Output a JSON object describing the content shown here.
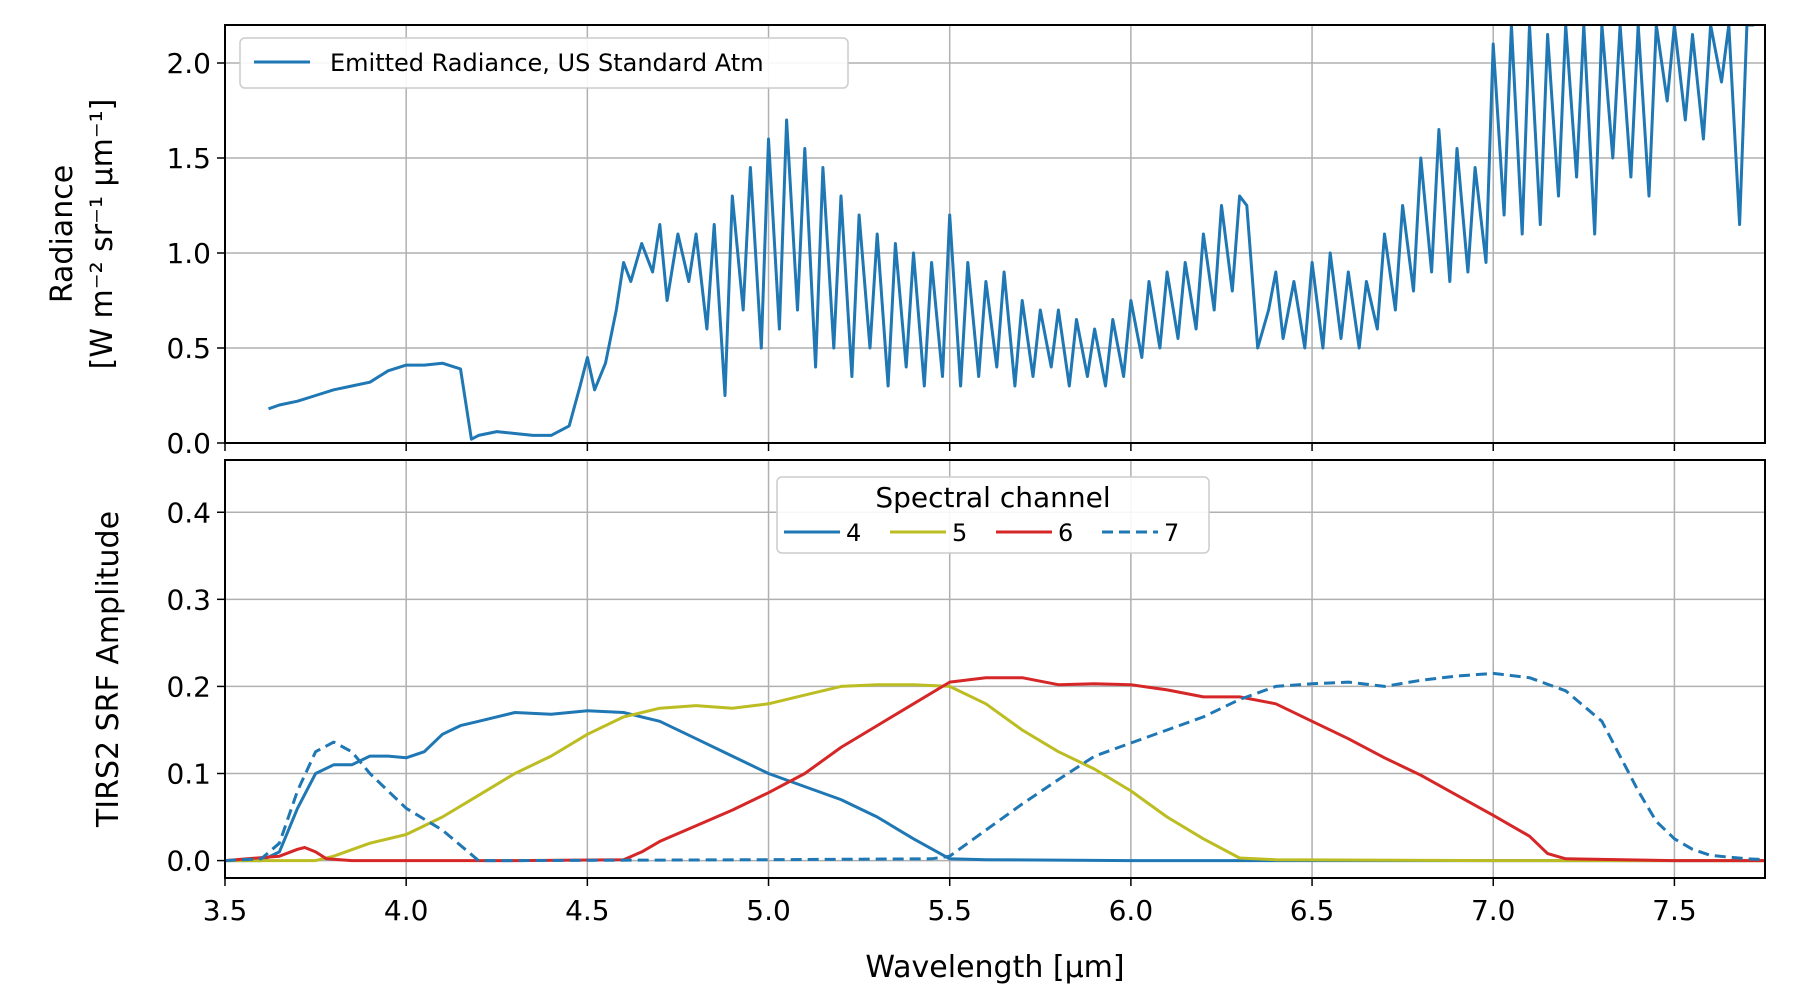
{
  "chart_data": [
    {
      "type": "line",
      "xlabel": "",
      "ylabel_line1": "Radiance",
      "ylabel_line2": "[W m⁻² sr⁻¹ μm⁻¹]",
      "xlim": [
        3.5,
        7.75
      ],
      "ylim": [
        0.0,
        2.2
      ],
      "yticks": [
        "0.0",
        "0.5",
        "1.0",
        "1.5",
        "2.0"
      ],
      "yticks_values": [
        0.0,
        0.5,
        1.0,
        1.5,
        2.0
      ],
      "grid": true,
      "legend_position": "upper-left",
      "series": [
        {
          "name": "Emitted Radiance, US Standard Atm",
          "color": "#1f77b4",
          "x": [
            3.62,
            3.65,
            3.7,
            3.75,
            3.8,
            3.85,
            3.9,
            3.95,
            4.0,
            4.05,
            4.1,
            4.15,
            4.18,
            4.2,
            4.25,
            4.3,
            4.35,
            4.4,
            4.45,
            4.48,
            4.5,
            4.52,
            4.55,
            4.58,
            4.6,
            4.62,
            4.65,
            4.68,
            4.7,
            4.72,
            4.75,
            4.78,
            4.8,
            4.83,
            4.85,
            4.88,
            4.9,
            4.93,
            4.95,
            4.98,
            5.0,
            5.03,
            5.05,
            5.08,
            5.1,
            5.13,
            5.15,
            5.18,
            5.2,
            5.23,
            5.25,
            5.28,
            5.3,
            5.33,
            5.35,
            5.38,
            5.4,
            5.43,
            5.45,
            5.48,
            5.5,
            5.53,
            5.55,
            5.58,
            5.6,
            5.63,
            5.65,
            5.68,
            5.7,
            5.73,
            5.75,
            5.78,
            5.8,
            5.83,
            5.85,
            5.88,
            5.9,
            5.93,
            5.95,
            5.98,
            6.0,
            6.03,
            6.05,
            6.08,
            6.1,
            6.13,
            6.15,
            6.18,
            6.2,
            6.23,
            6.25,
            6.28,
            6.3,
            6.32,
            6.35,
            6.38,
            6.4,
            6.42,
            6.45,
            6.48,
            6.5,
            6.53,
            6.55,
            6.58,
            6.6,
            6.63,
            6.65,
            6.68,
            6.7,
            6.73,
            6.75,
            6.78,
            6.8,
            6.83,
            6.85,
            6.88,
            6.9,
            6.93,
            6.95,
            6.98,
            7.0,
            7.03,
            7.05,
            7.08,
            7.1,
            7.13,
            7.15,
            7.18,
            7.2,
            7.23,
            7.25,
            7.28,
            7.3,
            7.33,
            7.35,
            7.38,
            7.4,
            7.43,
            7.45,
            7.48,
            7.5,
            7.53,
            7.55,
            7.58,
            7.6,
            7.63,
            7.65,
            7.68,
            7.7,
            7.72
          ],
          "y": [
            0.18,
            0.2,
            0.22,
            0.25,
            0.28,
            0.3,
            0.32,
            0.38,
            0.41,
            0.41,
            0.42,
            0.39,
            0.02,
            0.04,
            0.06,
            0.05,
            0.04,
            0.04,
            0.09,
            0.3,
            0.45,
            0.28,
            0.42,
            0.7,
            0.95,
            0.85,
            1.05,
            0.9,
            1.15,
            0.75,
            1.1,
            0.85,
            1.1,
            0.6,
            1.15,
            0.25,
            1.3,
            0.7,
            1.45,
            0.5,
            1.6,
            0.6,
            1.7,
            0.7,
            1.55,
            0.4,
            1.45,
            0.5,
            1.3,
            0.35,
            1.2,
            0.5,
            1.1,
            0.3,
            1.05,
            0.4,
            1.0,
            0.3,
            0.95,
            0.35,
            1.2,
            0.3,
            0.95,
            0.35,
            0.85,
            0.4,
            0.9,
            0.3,
            0.75,
            0.35,
            0.7,
            0.4,
            0.7,
            0.3,
            0.65,
            0.35,
            0.6,
            0.3,
            0.65,
            0.35,
            0.75,
            0.45,
            0.85,
            0.5,
            0.9,
            0.55,
            0.95,
            0.6,
            1.1,
            0.7,
            1.25,
            0.8,
            1.3,
            1.25,
            0.5,
            0.7,
            0.9,
            0.55,
            0.85,
            0.5,
            0.95,
            0.5,
            1.0,
            0.55,
            0.9,
            0.5,
            0.85,
            0.6,
            1.1,
            0.7,
            1.25,
            0.8,
            1.5,
            0.9,
            1.65,
            0.85,
            1.55,
            0.9,
            1.45,
            0.95,
            2.1,
            1.2,
            2.2,
            1.1,
            2.2,
            1.15,
            2.15,
            1.3,
            2.2,
            1.4,
            2.2,
            1.1,
            2.2,
            1.5,
            2.2,
            1.4,
            2.2,
            1.3,
            2.2,
            1.8,
            2.2,
            1.7,
            2.15,
            1.6,
            2.2,
            1.9,
            2.2,
            1.15,
            2.2,
            2.2
          ]
        }
      ]
    },
    {
      "type": "line",
      "xlabel": "Wavelength [μm]",
      "ylabel": "TIRS2 SRF Amplitude",
      "xlim": [
        3.5,
        7.75
      ],
      "ylim": [
        -0.02,
        0.46
      ],
      "xticks": [
        "3.5",
        "4.0",
        "4.5",
        "5.0",
        "5.5",
        "6.0",
        "6.5",
        "7.0",
        "7.5"
      ],
      "xticks_values": [
        3.5,
        4.0,
        4.5,
        5.0,
        5.5,
        6.0,
        6.5,
        7.0,
        7.5
      ],
      "yticks": [
        "0.0",
        "0.1",
        "0.2",
        "0.3",
        "0.4"
      ],
      "yticks_values": [
        0.0,
        0.1,
        0.2,
        0.3,
        0.4
      ],
      "grid": true,
      "legend_position": "top-center",
      "legend_title": "Spectral channel",
      "series": [
        {
          "name": "4",
          "color": "#1f77b4",
          "dash": false,
          "x": [
            3.5,
            3.6,
            3.65,
            3.7,
            3.75,
            3.8,
            3.85,
            3.9,
            3.95,
            4.0,
            4.05,
            4.1,
            4.15,
            4.2,
            4.3,
            4.4,
            4.5,
            4.6,
            4.7,
            4.8,
            4.9,
            5.0,
            5.1,
            5.2,
            5.3,
            5.4,
            5.5,
            5.6,
            6.0,
            6.5,
            7.0,
            7.5,
            7.75
          ],
          "y": [
            0.0,
            0.0,
            0.01,
            0.06,
            0.1,
            0.11,
            0.11,
            0.12,
            0.12,
            0.118,
            0.125,
            0.145,
            0.155,
            0.16,
            0.17,
            0.168,
            0.172,
            0.17,
            0.16,
            0.14,
            0.12,
            0.1,
            0.085,
            0.07,
            0.05,
            0.025,
            0.002,
            0.001,
            0.0,
            0.0,
            0.0,
            0.0,
            0.0
          ]
        },
        {
          "name": "5",
          "color": "#bcbd22",
          "dash": false,
          "x": [
            3.5,
            3.75,
            3.8,
            3.9,
            4.0,
            4.1,
            4.2,
            4.3,
            4.4,
            4.5,
            4.6,
            4.7,
            4.8,
            4.9,
            5.0,
            5.1,
            5.2,
            5.3,
            5.4,
            5.5,
            5.6,
            5.7,
            5.8,
            5.9,
            6.0,
            6.1,
            6.2,
            6.3,
            6.4,
            7.0,
            7.75
          ],
          "y": [
            0.0,
            0.0,
            0.005,
            0.02,
            0.03,
            0.05,
            0.075,
            0.1,
            0.12,
            0.145,
            0.165,
            0.175,
            0.178,
            0.175,
            0.18,
            0.19,
            0.2,
            0.202,
            0.202,
            0.2,
            0.18,
            0.15,
            0.125,
            0.105,
            0.08,
            0.05,
            0.025,
            0.003,
            0.001,
            0.0,
            0.0
          ]
        },
        {
          "name": "6",
          "color": "#d62728",
          "dash": false,
          "x": [
            3.5,
            3.65,
            3.7,
            3.72,
            3.75,
            3.78,
            3.85,
            4.0,
            4.3,
            4.6,
            4.65,
            4.7,
            4.8,
            4.9,
            5.0,
            5.1,
            5.2,
            5.3,
            5.4,
            5.5,
            5.6,
            5.7,
            5.8,
            5.9,
            6.0,
            6.1,
            6.2,
            6.3,
            6.4,
            6.5,
            6.6,
            6.7,
            6.8,
            6.9,
            7.0,
            7.1,
            7.15,
            7.2,
            7.5,
            7.75
          ],
          "y": [
            0.0,
            0.005,
            0.013,
            0.015,
            0.01,
            0.002,
            0.0,
            0.0,
            0.0,
            0.001,
            0.01,
            0.022,
            0.04,
            0.058,
            0.078,
            0.1,
            0.13,
            0.155,
            0.18,
            0.205,
            0.21,
            0.21,
            0.202,
            0.203,
            0.202,
            0.196,
            0.188,
            0.188,
            0.18,
            0.16,
            0.14,
            0.118,
            0.098,
            0.075,
            0.052,
            0.028,
            0.008,
            0.002,
            0.0,
            0.0
          ]
        },
        {
          "name": "7",
          "color": "#1f77b4",
          "dash": true,
          "x": [
            3.5,
            3.6,
            3.65,
            3.7,
            3.75,
            3.8,
            3.85,
            3.9,
            4.0,
            4.1,
            4.2,
            4.3,
            5.0,
            5.45,
            5.5,
            5.6,
            5.7,
            5.8,
            5.9,
            6.0,
            6.1,
            6.2,
            6.3,
            6.4,
            6.5,
            6.6,
            6.7,
            6.8,
            6.9,
            7.0,
            7.1,
            7.2,
            7.3,
            7.4,
            7.45,
            7.5,
            7.55,
            7.6,
            7.7,
            7.75
          ],
          "y": [
            0.0,
            0.002,
            0.02,
            0.08,
            0.125,
            0.136,
            0.125,
            0.1,
            0.06,
            0.035,
            0.0,
            0.0,
            0.001,
            0.002,
            0.005,
            0.035,
            0.065,
            0.093,
            0.12,
            0.135,
            0.15,
            0.165,
            0.185,
            0.2,
            0.203,
            0.205,
            0.2,
            0.207,
            0.212,
            0.215,
            0.21,
            0.195,
            0.16,
            0.08,
            0.045,
            0.025,
            0.013,
            0.006,
            0.002,
            0.001
          ]
        }
      ]
    }
  ]
}
